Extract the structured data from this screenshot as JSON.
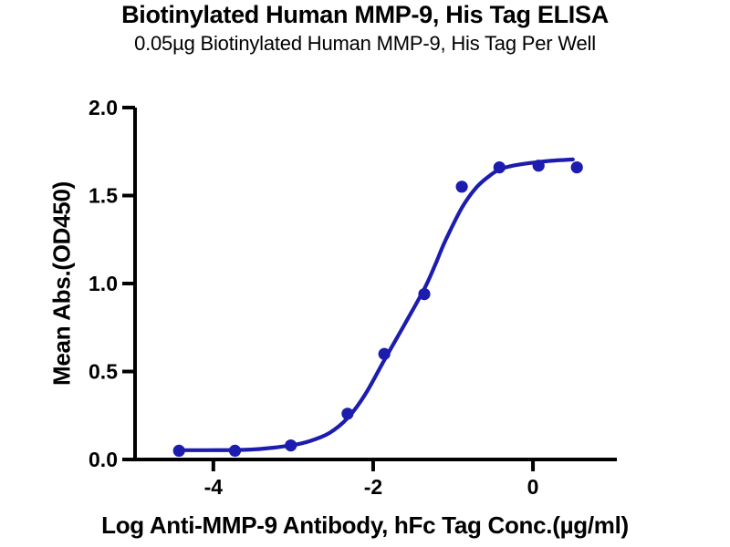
{
  "chart_data": {
    "type": "scatter",
    "title": "Biotinylated Human MMP-9, His Tag ELISA",
    "subtitle": "0.05µg Biotinylated Human MMP-9, His Tag Per Well",
    "xlabel": "Log Anti-MMP-9 Antibody, hFc Tag Conc.(µg/ml)",
    "ylabel": "Mean Abs.(OD450)",
    "xlim": [
      -4.98,
      1.05
    ],
    "ylim": [
      0.0,
      2.0
    ],
    "x_ticks": [
      {
        "v": -4,
        "label": "-4"
      },
      {
        "v": -2,
        "label": "-2"
      },
      {
        "v": 0,
        "label": "0"
      }
    ],
    "y_ticks": [
      {
        "v": 0.0,
        "label": "0.0"
      },
      {
        "v": 0.5,
        "label": "0.5"
      },
      {
        "v": 1.0,
        "label": "1.0"
      },
      {
        "v": 1.5,
        "label": "1.5"
      },
      {
        "v": 2.0,
        "label": "2.0"
      }
    ],
    "grid": false,
    "legend": "none",
    "colors": {
      "series": "#1c1caf",
      "axis": "#000000",
      "text": "#000000"
    },
    "series": [
      {
        "name": "Biotinylated Human MMP-9, His Tag",
        "marker": "circle",
        "points": [
          {
            "x": -4.43,
            "y": 0.05
          },
          {
            "x": -3.73,
            "y": 0.05
          },
          {
            "x": -3.03,
            "y": 0.08
          },
          {
            "x": -2.32,
            "y": 0.26
          },
          {
            "x": -1.86,
            "y": 0.6
          },
          {
            "x": -1.36,
            "y": 0.94
          },
          {
            "x": -0.89,
            "y": 1.55
          },
          {
            "x": -0.42,
            "y": 1.66
          },
          {
            "x": 0.07,
            "y": 1.67
          },
          {
            "x": 0.55,
            "y": 1.66
          }
        ]
      }
    ],
    "fit_curve": {
      "model": "4PL sigmoidal dose-response fit",
      "samples": [
        [
          -4.43,
          0.053
        ],
        [
          -4.1,
          0.053
        ],
        [
          -3.73,
          0.054
        ],
        [
          -3.4,
          0.06
        ],
        [
          -3.03,
          0.08
        ],
        [
          -2.79,
          0.105
        ],
        [
          -2.55,
          0.15
        ],
        [
          -2.32,
          0.235
        ],
        [
          -2.1,
          0.37
        ],
        [
          -1.86,
          0.565
        ],
        [
          -1.61,
          0.765
        ],
        [
          -1.36,
          0.97
        ],
        [
          -1.22,
          1.11
        ],
        [
          -1.1,
          1.24
        ],
        [
          -0.89,
          1.43
        ],
        [
          -0.71,
          1.545
        ],
        [
          -0.55,
          1.61
        ],
        [
          -0.42,
          1.648
        ],
        [
          -0.25,
          1.67
        ],
        [
          -0.07,
          1.683
        ],
        [
          0.1,
          1.692
        ],
        [
          0.3,
          1.7
        ],
        [
          0.5,
          1.705
        ]
      ]
    }
  }
}
